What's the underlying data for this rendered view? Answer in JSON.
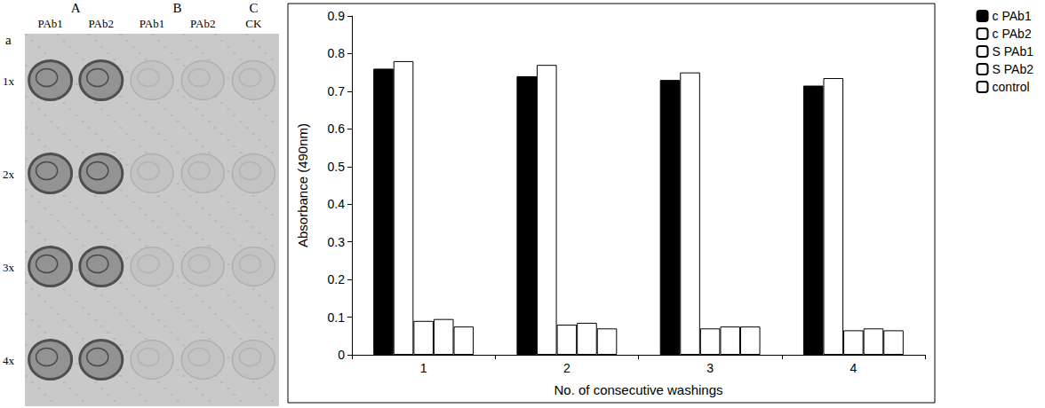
{
  "chart_data": {
    "type": "bar",
    "x_label": "No. of consecutive washings",
    "y_label": "Absorbance (490nm)",
    "categories": [
      "1",
      "2",
      "3",
      "4"
    ],
    "series": [
      {
        "name": "c PAb1",
        "color": "#000000",
        "values": [
          0.76,
          0.74,
          0.73,
          0.715
        ]
      },
      {
        "name": "c PAb2",
        "color": "#ffffff",
        "values": [
          0.78,
          0.77,
          0.75,
          0.735
        ]
      },
      {
        "name": "S PAb1",
        "color": "#ffffff",
        "values": [
          0.09,
          0.08,
          0.07,
          0.065
        ]
      },
      {
        "name": "S PAb2",
        "color": "#ffffff",
        "values": [
          0.095,
          0.085,
          0.075,
          0.07
        ]
      },
      {
        "name": "control",
        "color": "#ffffff",
        "values": [
          0.075,
          0.07,
          0.075,
          0.065
        ]
      }
    ],
    "ylim": [
      0,
      0.9
    ],
    "yticks": [
      0,
      0.1,
      0.2,
      0.3,
      0.4,
      0.5,
      0.6,
      0.7,
      0.8,
      0.9
    ],
    "grid": false,
    "legend": "top-right"
  },
  "blot_panel": {
    "letter": "a",
    "groups": [
      {
        "label": "A",
        "columns": [
          "PAb1",
          "PAb2"
        ]
      },
      {
        "label": "B",
        "columns": [
          "PAb1",
          "PAb2"
        ]
      },
      {
        "label": "C",
        "columns": [
          "CK"
        ]
      }
    ],
    "rows": [
      "1x",
      "2x",
      "3x",
      "4x"
    ]
  }
}
